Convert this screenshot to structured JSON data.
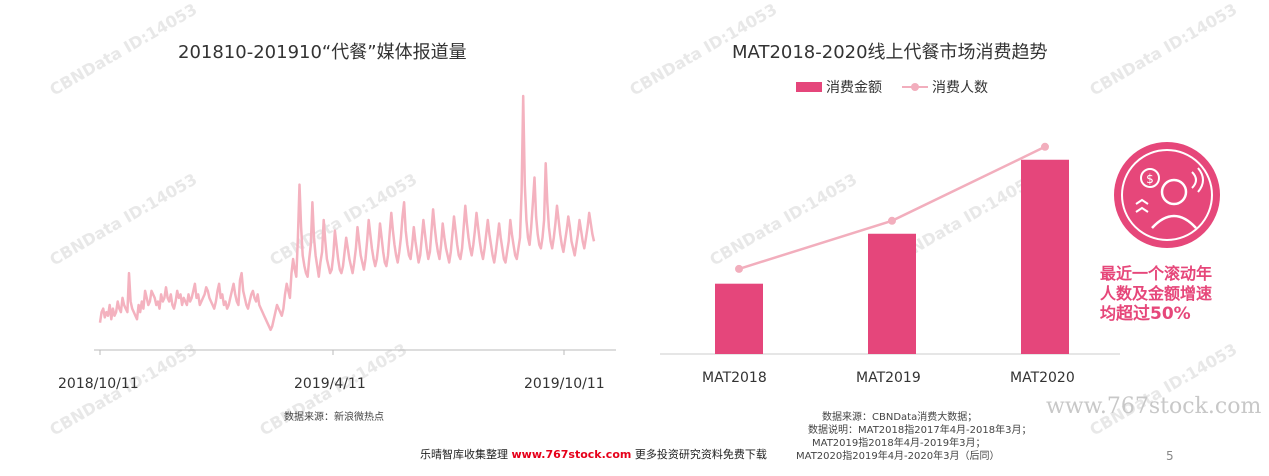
{
  "left_chart": {
    "title": "201810-201910“代餐”媒体报道量",
    "x_ticks": [
      "2018/10/11",
      "2019/4/11",
      "2019/10/11"
    ],
    "source": "数据来源：新浪微热点"
  },
  "right_chart": {
    "title": "MAT2018-2020线上代餐市场消费趋势",
    "legend": [
      "消费金额",
      "消费人数"
    ],
    "categories": [
      "MAT2018",
      "MAT2019",
      "MAT2020"
    ],
    "notes": [
      "数据来源：CBNData消费大数据；",
      "数据说明：MAT2018指2017年4月-2018年3月；",
      "MAT2019指2018年4月-2019年3月；",
      "MAT2020指2019年4月-2020年3月（后同）"
    ]
  },
  "callout": {
    "line1": "最近一个滚动年",
    "line2": "人数及金额增速",
    "line3_prefix": "均",
    "line3_strong": "超过50%"
  },
  "footer": {
    "prefix": "乐晴智库收集整理",
    "site": "www.767stock.com",
    "suffix": "更多投资研究资料免费下载"
  },
  "site_mark": "www.767stock.com",
  "page_number": "5",
  "watermark": "CBNData ID:14053",
  "colors": {
    "bar": "#e5467b",
    "line": "#f2aebd",
    "area_line": "#f4b2bf",
    "callout": "#e6477a"
  },
  "icon": "consumer-money-icon",
  "chart_data": [
    {
      "type": "line",
      "title": "201810-201910“代餐”媒体报道量",
      "x_start": "2018/10/11",
      "x_end": "2019/10/11",
      "x_ticks": [
        "2018/10/11",
        "2019/4/11",
        "2019/10/11"
      ],
      "series": [
        {
          "values": [
            12,
            18,
            20,
            15,
            18,
            16,
            22,
            14,
            20,
            16,
            18,
            24,
            20,
            18,
            26,
            22,
            20,
            18,
            40,
            24,
            20,
            18,
            16,
            14,
            22,
            18,
            24,
            20,
            30,
            26,
            22,
            24,
            30,
            28,
            26,
            22,
            24,
            20,
            28,
            24,
            26,
            32,
            26,
            24,
            28,
            22,
            20,
            24,
            30,
            26,
            28,
            22,
            26,
            24,
            22,
            28,
            24,
            26,
            30,
            34,
            26,
            28,
            22,
            24,
            26,
            28,
            32,
            30,
            26,
            24,
            22,
            20,
            24,
            30,
            34,
            26,
            28,
            22,
            24,
            20,
            22,
            26,
            30,
            34,
            28,
            24,
            22,
            36,
            40,
            30,
            26,
            22,
            20,
            24,
            28,
            30,
            26,
            24,
            28,
            22,
            20,
            18,
            16,
            14,
            12,
            10,
            8,
            10,
            14,
            18,
            22,
            20,
            18,
            16,
            20,
            28,
            34,
            30,
            26,
            40,
            48,
            42,
            38,
            60,
            90,
            66,
            50,
            44,
            40,
            38,
            48,
            56,
            80,
            60,
            50,
            44,
            38,
            46,
            52,
            70,
            58,
            48,
            44,
            40,
            42,
            50,
            64,
            56,
            48,
            42,
            40,
            44,
            52,
            60,
            54,
            48,
            44,
            40,
            46,
            54,
            66,
            58,
            50,
            46,
            42,
            48,
            58,
            70,
            62,
            54,
            48,
            44,
            48,
            56,
            68,
            60,
            52,
            46,
            44,
            50,
            62,
            74,
            64,
            56,
            50,
            46,
            52,
            60,
            72,
            80,
            64,
            56,
            50,
            48,
            56,
            66,
            58,
            52,
            46,
            50,
            60,
            70,
            62,
            54,
            48,
            52,
            64,
            76,
            66,
            58,
            52,
            48,
            56,
            68,
            60,
            54,
            50,
            46,
            52,
            62,
            72,
            64,
            56,
            50,
            48,
            54,
            66,
            78,
            68,
            60,
            54,
            50,
            56,
            64,
            74,
            66,
            58,
            52,
            48,
            54,
            62,
            70,
            62,
            56,
            50,
            46,
            52,
            60,
            68,
            60,
            54,
            48,
            46,
            52,
            58,
            70,
            62,
            56,
            50,
            48,
            54,
            60,
            86,
            140,
            90,
            70,
            60,
            56,
            66,
            80,
            94,
            72,
            62,
            56,
            54,
            60,
            70,
            102,
            80,
            66,
            58,
            54,
            60,
            68,
            78,
            70,
            62,
            56,
            52,
            58,
            64,
            72,
            66,
            58,
            54,
            50,
            56,
            62,
            70,
            64,
            58,
            54,
            60,
            66,
            74,
            68,
            62,
            58
          ]
        }
      ]
    },
    {
      "type": "bar",
      "title": "MAT2018-2020线上代餐市场消费趋势",
      "categories": [
        "MAT2018",
        "MAT2019",
        "MAT2020"
      ],
      "series": [
        {
          "name": "消费金额",
          "type": "bar",
          "values": [
            38,
            65,
            105
          ]
        },
        {
          "name": "消费人数",
          "type": "line",
          "values": [
            46,
            72,
            112
          ]
        }
      ],
      "ylim": [
        0,
        120
      ]
    }
  ]
}
